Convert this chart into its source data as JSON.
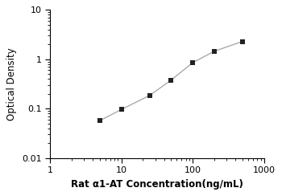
{
  "x": [
    5,
    10,
    25,
    50,
    100,
    200,
    500
  ],
  "y": [
    0.057,
    0.096,
    0.185,
    0.38,
    0.85,
    1.45,
    2.3
  ],
  "line_color": "#aaaaaa",
  "marker_color": "#222222",
  "marker": "s",
  "marker_size": 4,
  "xlabel": "Rat α1-AT Concentration(ng/mL)",
  "ylabel": "Optical Density",
  "xlim": [
    1,
    1000
  ],
  "ylim": [
    0.01,
    10
  ],
  "xticks": [
    1,
    10,
    100,
    1000
  ],
  "yticks": [
    0.01,
    0.1,
    1,
    10
  ],
  "xlabel_fontsize": 8.5,
  "ylabel_fontsize": 8.5,
  "tick_fontsize": 8,
  "background_color": "#ffffff"
}
